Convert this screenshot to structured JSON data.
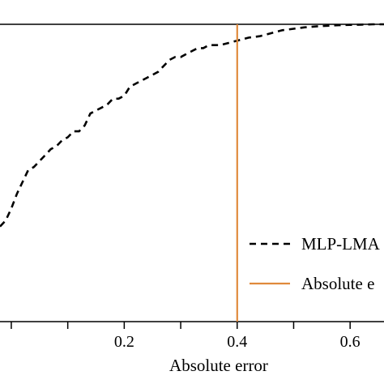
{
  "chart_data": {
    "type": "line",
    "xlabel": "Absolute error",
    "xlim": [
      -0.02,
      0.66
    ],
    "ylim": [
      0.0,
      1.0
    ],
    "xticks": [
      0.2,
      0.4,
      0.6
    ],
    "xtick_labels": [
      "0.2",
      "0.4",
      "0.6"
    ],
    "series": [
      {
        "name": "MLP-LMA",
        "style": "dashed",
        "color": "#000000",
        "x": [
          -0.02,
          -0.01,
          0.0,
          0.01,
          0.02,
          0.03,
          0.04,
          0.05,
          0.06,
          0.07,
          0.08,
          0.09,
          0.1,
          0.11,
          0.12,
          0.13,
          0.14,
          0.15,
          0.16,
          0.17,
          0.18,
          0.19,
          0.2,
          0.21,
          0.22,
          0.23,
          0.24,
          0.25,
          0.26,
          0.27,
          0.28,
          0.29,
          0.3,
          0.31,
          0.32,
          0.33,
          0.34,
          0.35,
          0.36,
          0.37,
          0.38,
          0.39,
          0.4,
          0.42,
          0.44,
          0.46,
          0.48,
          0.5,
          0.52,
          0.54,
          0.56,
          0.58,
          0.6,
          0.62,
          0.64,
          0.66
        ],
        "y": [
          0.32,
          0.34,
          0.38,
          0.43,
          0.47,
          0.51,
          0.52,
          0.54,
          0.56,
          0.58,
          0.59,
          0.61,
          0.62,
          0.64,
          0.64,
          0.66,
          0.7,
          0.71,
          0.72,
          0.73,
          0.75,
          0.75,
          0.76,
          0.79,
          0.8,
          0.81,
          0.82,
          0.83,
          0.84,
          0.86,
          0.88,
          0.89,
          0.89,
          0.9,
          0.91,
          0.92,
          0.92,
          0.93,
          0.93,
          0.93,
          0.935,
          0.94,
          0.945,
          0.955,
          0.96,
          0.97,
          0.98,
          0.985,
          0.99,
          0.993,
          0.995,
          0.997,
          0.998,
          0.999,
          1.0,
          1.0
        ]
      },
      {
        "name": "Absolute e",
        "style": "solid",
        "color": "#e08a3c",
        "x": [
          0.4,
          0.4
        ],
        "y": [
          0.0,
          1.0
        ]
      }
    ],
    "reference_line": {
      "y": 1.0,
      "color": "#000000"
    },
    "legend_position": "bottom-right",
    "grid": false
  }
}
